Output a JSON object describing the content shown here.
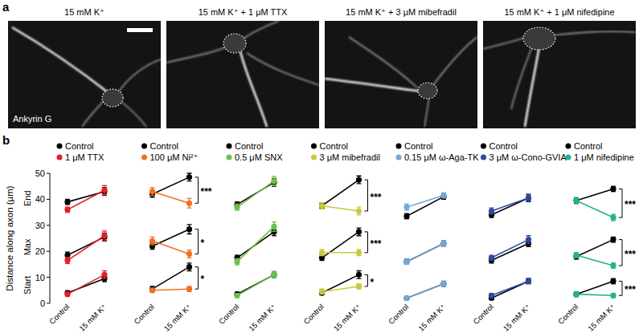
{
  "panel_a": {
    "label": "a",
    "images": [
      {
        "title": "15 mM K⁺",
        "stain": "Ankyrin G"
      },
      {
        "title": "15 mM K⁺ + 1 μM TTX"
      },
      {
        "title": "15 mM K⁺ + 3 μM mibefradil"
      },
      {
        "title": "15 mM K⁺ + 1 μM nifedipine"
      }
    ]
  },
  "panel_b": {
    "label": "b"
  },
  "chart_data": [
    {
      "type": "line",
      "ylabel": "Distance along axon (μm)",
      "measures": [
        "Start",
        "Max",
        "End"
      ],
      "categories": [
        "Control",
        "15 mM K⁺"
      ],
      "ylim": [
        0,
        50
      ],
      "yticks": [
        0,
        10,
        20,
        30,
        40,
        50
      ],
      "marker": "circle",
      "series": [
        {
          "name": "Control",
          "color": "#000000",
          "values": [
            [
              4,
              9.5
            ],
            [
              18.5,
              25.5
            ],
            [
              39,
              43
            ]
          ],
          "errors": [
            [
              0.8,
              1.2
            ],
            [
              1.2,
              1.5
            ],
            [
              1,
              1.5
            ]
          ]
        },
        {
          "name": "1 μM TTX",
          "color": "#e31e24",
          "values": [
            [
              3.5,
              11
            ],
            [
              16.5,
              26
            ],
            [
              36,
              43.5
            ]
          ],
          "errors": [
            [
              0.8,
              1.5
            ],
            [
              1.2,
              1.8
            ],
            [
              1,
              1.8
            ]
          ]
        }
      ]
    },
    {
      "type": "line",
      "categories": [
        "Control",
        "15 mM K⁺"
      ],
      "ylim": [
        0,
        50
      ],
      "tick_labels": "x",
      "marker": "circle",
      "significance": [
        "*",
        "*",
        "***"
      ],
      "series": [
        {
          "name": "Control",
          "color": "#000000",
          "values": [
            [
              5.5,
              14
            ],
            [
              22,
              28.5
            ],
            [
              42,
              48.5
            ]
          ],
          "errors": [
            [
              1,
              1.5
            ],
            [
              1.2,
              1.8
            ],
            [
              1.2,
              1.5
            ]
          ]
        },
        {
          "name": "100 μM Ni²⁺",
          "color": "#f36f21",
          "values": [
            [
              5,
              5.5
            ],
            [
              24,
              19
            ],
            [
              43,
              38.5
            ]
          ],
          "errors": [
            [
              0.8,
              1
            ],
            [
              1.5,
              1.5
            ],
            [
              1.5,
              1.8
            ]
          ]
        }
      ]
    },
    {
      "type": "line",
      "categories": [
        "Control",
        "15 mM K⁺"
      ],
      "ylim": [
        0,
        50
      ],
      "tick_labels": "x",
      "marker": "circle",
      "series": [
        {
          "name": "Control",
          "color": "#000000",
          "values": [
            [
              3.5,
              11
            ],
            [
              17.5,
              27.5
            ],
            [
              38,
              46.5
            ]
          ],
          "errors": [
            [
              0.8,
              1.2
            ],
            [
              1,
              1.5
            ],
            [
              1,
              1.5
            ]
          ]
        },
        {
          "name": "0.5 μM SNX",
          "color": "#6cbf4a",
          "values": [
            [
              3,
              11
            ],
            [
              16,
              29.5
            ],
            [
              37,
              47
            ]
          ],
          "errors": [
            [
              0.8,
              1.2
            ],
            [
              1.2,
              1.8
            ],
            [
              1.2,
              1.8
            ]
          ]
        }
      ]
    },
    {
      "type": "line",
      "categories": [
        "Control",
        "15 mM K⁺"
      ],
      "ylim": [
        0,
        50
      ],
      "tick_labels": "x",
      "marker": "circle",
      "significance": [
        "*",
        "***",
        "***"
      ],
      "series": [
        {
          "name": "Control",
          "color": "#000000",
          "values": [
            [
              4,
              11
            ],
            [
              17.5,
              27.5
            ],
            [
              37.5,
              47.5
            ]
          ],
          "errors": [
            [
              0.8,
              1.5
            ],
            [
              1,
              1.5
            ],
            [
              1,
              1.5
            ]
          ]
        },
        {
          "name": "3 μM mibefradil",
          "color": "#c9c83c",
          "values": [
            [
              4.5,
              6.5
            ],
            [
              19.5,
              19.5
            ],
            [
              37.5,
              35.5
            ]
          ],
          "errors": [
            [
              1,
              1
            ],
            [
              1.2,
              1.2
            ],
            [
              1.2,
              1.5
            ]
          ]
        }
      ]
    },
    {
      "type": "line",
      "categories": [
        "Control",
        "15 mM K⁺"
      ],
      "ylim": [
        0,
        50
      ],
      "tick_labels": "x",
      "marker": "circle",
      "series": [
        {
          "name": "Control",
          "color": "#000000",
          "values": [
            [
              2,
              7.5
            ],
            [
              16,
              23
            ],
            [
              33.5,
              41
            ]
          ],
          "errors": [
            [
              0.6,
              1
            ],
            [
              1,
              1
            ],
            [
              1,
              1
            ]
          ]
        },
        {
          "name": "0.15 μM ω-Aga-TK",
          "color": "#6fa8dc",
          "values": [
            [
              2,
              7.5
            ],
            [
              16,
              23
            ],
            [
              37,
              41.5
            ]
          ],
          "errors": [
            [
              0.6,
              1
            ],
            [
              1,
              1
            ],
            [
              1.2,
              1
            ]
          ]
        }
      ]
    },
    {
      "type": "line",
      "categories": [
        "Control",
        "15 mM K⁺"
      ],
      "ylim": [
        0,
        50
      ],
      "tick_labels": "x",
      "marker": "circle",
      "series": [
        {
          "name": "Control",
          "color": "#000000",
          "values": [
            [
              2,
              8.5
            ],
            [
              16.5,
              23
            ],
            [
              34,
              40.5
            ]
          ],
          "errors": [
            [
              0.6,
              1
            ],
            [
              1,
              1.2
            ],
            [
              1,
              1.2
            ]
          ]
        },
        {
          "name": "3 μM ω-Cono-GVIA",
          "color": "#2e4a9e",
          "values": [
            [
              3,
              8.5
            ],
            [
              17.5,
              24.5
            ],
            [
              35.5,
              40.5
            ]
          ],
          "errors": [
            [
              0.8,
              1
            ],
            [
              1,
              1.5
            ],
            [
              1.2,
              1.5
            ]
          ]
        }
      ]
    },
    {
      "type": "line",
      "categories": [
        "Control",
        "15 mM K⁺"
      ],
      "ylim": [
        0,
        50
      ],
      "tick_labels": "x",
      "marker": "circle",
      "significance": [
        "***",
        "***",
        "***"
      ],
      "series": [
        {
          "name": "Control",
          "color": "#000000",
          "values": [
            [
              3.5,
              8.5
            ],
            [
              18,
              24.5
            ],
            [
              39.5,
              44
            ]
          ],
          "errors": [
            [
              0.8,
              1
            ],
            [
              1,
              1
            ],
            [
              1,
              1
            ]
          ]
        },
        {
          "name": "1 μM nifedipine",
          "color": "#22b38a",
          "values": [
            [
              3.5,
              3
            ],
            [
              18.5,
              14.5
            ],
            [
              39.5,
              33
            ]
          ],
          "errors": [
            [
              1,
              0.8
            ],
            [
              1,
              1
            ],
            [
              1.2,
              1.2
            ]
          ]
        }
      ]
    }
  ]
}
